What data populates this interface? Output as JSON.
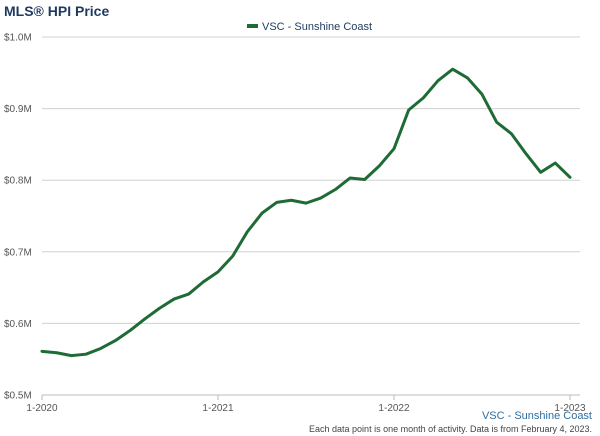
{
  "chart_data": {
    "type": "line",
    "title": "MLS® HPI Price",
    "legend": {
      "position": "top-center",
      "entries": [
        "VSC - Sunshine Coast"
      ]
    },
    "series_label_bottom": "VSC - Sunshine Coast",
    "footnote": "Each data point is one month of activity. Data is from February 4, 2023.",
    "xlabel": "",
    "ylabel": "",
    "ylim": [
      500000,
      1000000
    ],
    "grid": true,
    "y_ticks": [
      {
        "value": 500000,
        "label": "$0.5M"
      },
      {
        "value": 600000,
        "label": "$0.6M"
      },
      {
        "value": 700000,
        "label": "$0.7M"
      },
      {
        "value": 800000,
        "label": "$0.8M"
      },
      {
        "value": 900000,
        "label": "$0.9M"
      },
      {
        "value": 1000000,
        "label": "$1.0M"
      }
    ],
    "x_ticks": [
      {
        "value": "2020-01",
        "label": "1-2020"
      },
      {
        "value": "2021-01",
        "label": "1-2021"
      },
      {
        "value": "2022-01",
        "label": "1-2022"
      },
      {
        "value": "2023-01",
        "label": "1-2023"
      }
    ],
    "colors": {
      "series": "#1e6b35",
      "grid": "#d0d0d0",
      "axis": "#bbbbbb"
    },
    "series": [
      {
        "name": "VSC - Sunshine Coast",
        "x": [
          "2020-01",
          "2020-02",
          "2020-03",
          "2020-04",
          "2020-05",
          "2020-06",
          "2020-07",
          "2020-08",
          "2020-09",
          "2020-10",
          "2020-11",
          "2020-12",
          "2021-01",
          "2021-02",
          "2021-03",
          "2021-04",
          "2021-05",
          "2021-06",
          "2021-07",
          "2021-08",
          "2021-09",
          "2021-10",
          "2021-11",
          "2021-12",
          "2022-01",
          "2022-02",
          "2022-03",
          "2022-04",
          "2022-05",
          "2022-06",
          "2022-07",
          "2022-08",
          "2022-09",
          "2022-10",
          "2022-11",
          "2022-12",
          "2023-01"
        ],
        "values": [
          561000,
          559000,
          555000,
          557000,
          565000,
          576000,
          590000,
          606000,
          621000,
          634000,
          641000,
          658000,
          672000,
          694000,
          728000,
          754000,
          769000,
          772000,
          768000,
          775000,
          787000,
          803000,
          801000,
          820000,
          844000,
          898000,
          915000,
          939000,
          955000,
          943000,
          920000,
          881000,
          865000,
          837000,
          811000,
          824000,
          804000
        ]
      }
    ]
  }
}
